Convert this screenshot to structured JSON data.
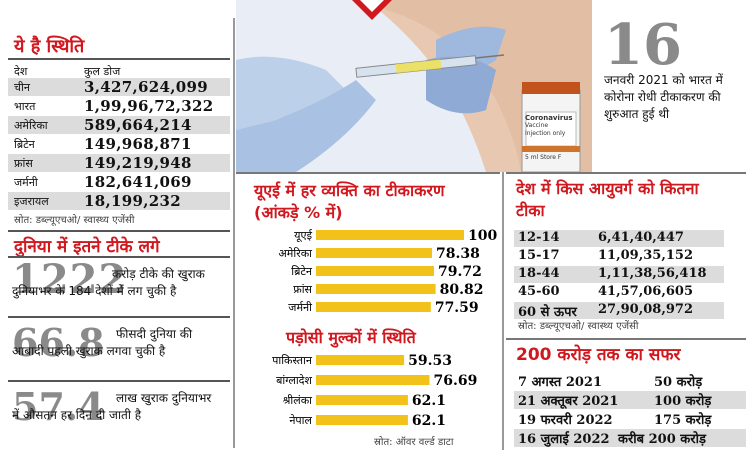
{
  "chart_data": [
    {
      "type": "table",
      "title": "ये है स्थिति",
      "columns": [
        "देश",
        "कुल डोज"
      ],
      "rows": [
        [
          "चीन",
          "3,427,624,099"
        ],
        [
          "भारत",
          "1,99,96,72,322"
        ],
        [
          "अमेरिका",
          "589,664,214"
        ],
        [
          "ब्रिटेन",
          "149,968,871"
        ],
        [
          "फ्रांस",
          "149,219,948"
        ],
        [
          "जर्मनी",
          "182,641,069"
        ],
        [
          "इजरायल",
          "18,199,232"
        ]
      ],
      "source": "स्रोत: डब्ल्यूएचओ/ स्वास्थ्य एजेंसी"
    },
    {
      "type": "bar",
      "title": "यूएई में हर व्यक्ति का टीकाकरण (आंकड़े % में)",
      "categories": [
        "यूएई",
        "अमेरिका",
        "ब्रिटेन",
        "फ्रांस",
        "जर्मनी"
      ],
      "values": [
        100,
        78.38,
        79.72,
        80.82,
        77.59
      ],
      "value_labels": [
        "100",
        "78.38",
        "79.72",
        "80.82",
        "77.59"
      ],
      "ylim": [
        0,
        100
      ]
    },
    {
      "type": "bar",
      "title": "पड़ोसी मुल्कों में स्थिति",
      "categories": [
        "पाकिस्तान",
        "बांग्लादेश",
        "श्रीलंका",
        "नेपाल"
      ],
      "values": [
        59.53,
        76.69,
        62.1,
        62.1
      ],
      "value_labels": [
        "59.53",
        "76.69",
        "62.1",
        "62.1"
      ],
      "ylim": [
        0,
        100
      ],
      "source": "स्रोत: ऑवर वर्ल्ड डाटा"
    },
    {
      "type": "table",
      "title": "देश में किस आयुवर्ग को कितना टीका",
      "rows": [
        [
          "12-14",
          "6,41,40,447"
        ],
        [
          "15-17",
          "11,09,35,152"
        ],
        [
          "18-44",
          "1,11,38,56,418"
        ],
        [
          "45-60",
          "41,57,06,605"
        ],
        [
          "60 से ऊपर",
          "27,90,08,972"
        ]
      ],
      "source": "स्रोत: डब्ल्यूएचओ/ स्वास्थ्य एजेंसी"
    },
    {
      "type": "table",
      "title": "200 करोड़ तक का सफर",
      "rows": [
        [
          "7 अगस्त 2021",
          "50 करोड़"
        ],
        [
          "21 अक्तूबर 2021",
          "100 करोड़"
        ],
        [
          "19 फरवरी 2022",
          "175 करोड़"
        ],
        [
          "16 जुलाई 2022",
          "करीब 200 करोड़"
        ]
      ]
    }
  ],
  "world_stats": {
    "title": "दुनिया में इतने टीके लगे",
    "stats": [
      {
        "number": "1222",
        "text": "करोड़ टीके की खुराक दुनियाभर के 184 देशों में लग चुकी है"
      },
      {
        "number": "66.8",
        "text": "फीसदी दुनिया की आबादी पहली खुराक लगवा चुकी है"
      },
      {
        "number": "57.4",
        "text": "लाख खुराक दुनियाभर में औसतन हर दिन दी जाती है"
      }
    ]
  },
  "start_info": {
    "number": "16",
    "text": "जनवरी 2021 को भारत में कोरोना रोधी टीकाकरण की शुरुआत हुई थी"
  },
  "photo": {
    "vial_brand": "Coronavirus",
    "vial_sub": "Vaccine",
    "vial_line": "Injection only",
    "vial_foot": "5 ml   Store F"
  },
  "colors": {
    "accent": "#d0181f",
    "bar": "#f2c21a",
    "grey": "#dcdcdc"
  }
}
